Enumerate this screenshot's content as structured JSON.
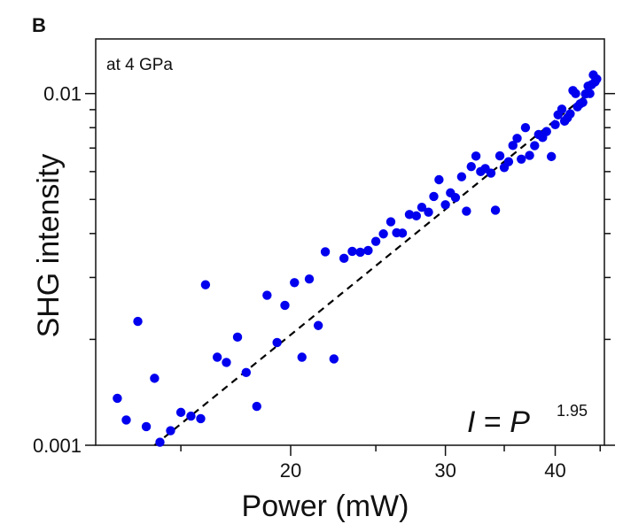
{
  "panel_label": "B",
  "chart_data": {
    "type": "scatter",
    "title": "",
    "xlabel": "Power (mW)",
    "ylabel": "SHG intensity",
    "x_scale": "log",
    "y_scale": "log",
    "xlim": [
      12.0,
      45.5
    ],
    "ylim": [
      0.001,
      0.0143
    ],
    "x_ticks_major": [
      20,
      30,
      40
    ],
    "x_tick_labels": [
      "20",
      "30",
      "40"
    ],
    "y_ticks_major": [
      0.001,
      0.01
    ],
    "y_tick_labels": [
      "0.001",
      "0.01"
    ],
    "grid": false,
    "annotation": "at 4 GPa",
    "equation": {
      "lhs": "I",
      "eq": " = ",
      "base": "P",
      "exponent": "1.95"
    },
    "fit": {
      "exponent": 1.95,
      "line_style": "dashed",
      "color": "#000000",
      "points": [
        [
          14.0,
          0.001
        ],
        [
          43.6,
          0.01
        ]
      ]
    },
    "marker_color": "#0000ee",
    "series": [
      {
        "points": [
          [
            12.7,
            0.00136
          ],
          [
            13.0,
            0.00118
          ],
          [
            13.4,
            0.00225
          ],
          [
            13.7,
            0.00113
          ],
          [
            14.0,
            0.00155
          ],
          [
            14.2,
            0.00102
          ],
          [
            14.6,
            0.0011
          ],
          [
            15.0,
            0.00124
          ],
          [
            15.4,
            0.00121
          ],
          [
            15.8,
            0.00119
          ],
          [
            16.0,
            0.00286
          ],
          [
            16.5,
            0.00178
          ],
          [
            16.9,
            0.00172
          ],
          [
            17.4,
            0.00203
          ],
          [
            17.8,
            0.00161
          ],
          [
            18.3,
            0.00129
          ],
          [
            18.8,
            0.00267
          ],
          [
            19.3,
            0.00196
          ],
          [
            19.7,
            0.0025
          ],
          [
            20.2,
            0.0029
          ],
          [
            20.6,
            0.00178
          ],
          [
            21.0,
            0.00297
          ],
          [
            21.5,
            0.00219
          ],
          [
            21.9,
            0.00355
          ],
          [
            22.4,
            0.00176
          ],
          [
            23.0,
            0.0034
          ],
          [
            23.5,
            0.00356
          ],
          [
            24.0,
            0.00354
          ],
          [
            24.5,
            0.00358
          ],
          [
            25.0,
            0.0038
          ],
          [
            25.5,
            0.00399
          ],
          [
            26.0,
            0.00432
          ],
          [
            26.4,
            0.00402
          ],
          [
            26.8,
            0.00401
          ],
          [
            27.3,
            0.00453
          ],
          [
            27.8,
            0.00449
          ],
          [
            28.2,
            0.00475
          ],
          [
            28.7,
            0.0046
          ],
          [
            29.1,
            0.0051
          ],
          [
            29.5,
            0.00569
          ],
          [
            30.0,
            0.00483
          ],
          [
            30.4,
            0.00522
          ],
          [
            30.8,
            0.00506
          ],
          [
            31.3,
            0.0058
          ],
          [
            31.7,
            0.00463
          ],
          [
            32.1,
            0.0062
          ],
          [
            32.5,
            0.00664
          ],
          [
            32.9,
            0.006
          ],
          [
            33.3,
            0.00612
          ],
          [
            33.8,
            0.00594
          ],
          [
            34.2,
            0.00466
          ],
          [
            34.6,
            0.00665
          ],
          [
            35.0,
            0.00616
          ],
          [
            35.4,
            0.0064
          ],
          [
            35.8,
            0.00712
          ],
          [
            36.2,
            0.00746
          ],
          [
            36.6,
            0.00651
          ],
          [
            37.0,
            0.008
          ],
          [
            37.4,
            0.00667
          ],
          [
            37.9,
            0.00711
          ],
          [
            38.3,
            0.00765
          ],
          [
            38.7,
            0.0075
          ],
          [
            39.1,
            0.0078
          ],
          [
            39.6,
            0.00662
          ],
          [
            40.0,
            0.00816
          ],
          [
            40.3,
            0.0087
          ],
          [
            40.7,
            0.00903
          ],
          [
            41.0,
            0.00835
          ],
          [
            41.3,
            0.00853
          ],
          [
            41.6,
            0.00876
          ],
          [
            41.9,
            0.0102
          ],
          [
            42.2,
            0.01
          ],
          [
            42.4,
            0.00917
          ],
          [
            42.7,
            0.00935
          ],
          [
            43.0,
            0.00944
          ],
          [
            43.3,
            0.00997
          ],
          [
            43.6,
            0.0105
          ],
          [
            43.8,
            0.01
          ],
          [
            44.0,
            0.0106
          ],
          [
            44.2,
            0.0113
          ],
          [
            44.4,
            0.0108
          ],
          [
            44.6,
            0.011
          ]
        ]
      }
    ]
  }
}
